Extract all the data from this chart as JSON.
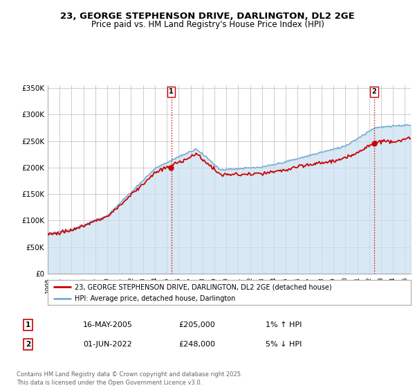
{
  "title": "23, GEORGE STEPHENSON DRIVE, DARLINGTON, DL2 2GE",
  "subtitle": "Price paid vs. HM Land Registry's House Price Index (HPI)",
  "ylabel_ticks": [
    "£0",
    "£50K",
    "£100K",
    "£150K",
    "£200K",
    "£250K",
    "£300K",
    "£350K"
  ],
  "ytick_values": [
    0,
    50000,
    100000,
    150000,
    200000,
    250000,
    300000,
    350000
  ],
  "ylim": [
    0,
    355000
  ],
  "xlim_start": 1995.0,
  "xlim_end": 2025.5,
  "house_color": "#cc0000",
  "hpi_color": "#7aadcf",
  "hpi_fill_color": "#c8dff0",
  "grid_color": "#cccccc",
  "vline_color": "#cc0000",
  "vline_style": ":",
  "marker1_year": 2005.37,
  "marker2_year": 2022.42,
  "legend_house": "23, GEORGE STEPHENSON DRIVE, DARLINGTON, DL2 2GE (detached house)",
  "legend_hpi": "HPI: Average price, detached house, Darlington",
  "annotation1_label": "1",
  "annotation1_date": "16-MAY-2005",
  "annotation1_price": "£205,000",
  "annotation1_hpi": "1% ↑ HPI",
  "annotation2_label": "2",
  "annotation2_date": "01-JUN-2022",
  "annotation2_price": "£248,000",
  "annotation2_hpi": "5% ↓ HPI",
  "footer": "Contains HM Land Registry data © Crown copyright and database right 2025.\nThis data is licensed under the Open Government Licence v3.0.",
  "bg_color": "#ffffff",
  "plot_bg_color": "#ffffff"
}
